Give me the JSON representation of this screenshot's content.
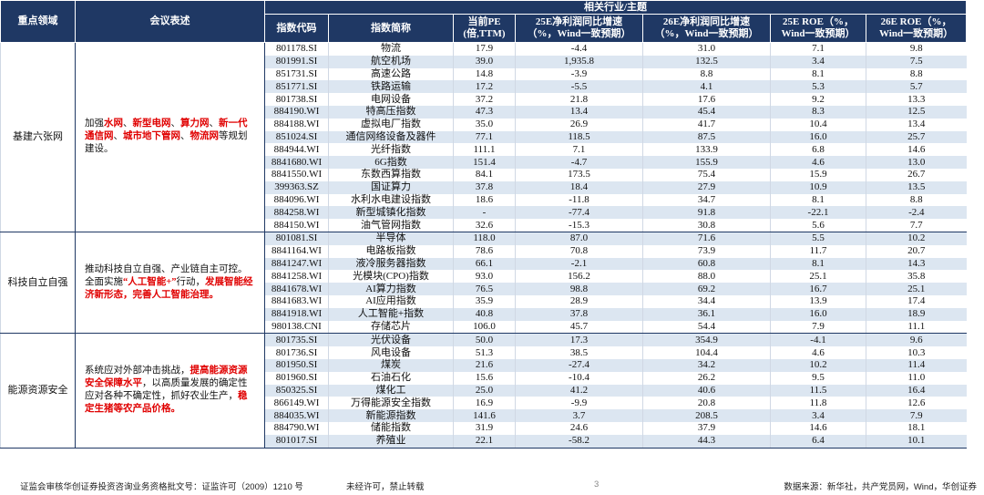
{
  "header": {
    "area": "重点领域",
    "statement": "会议表述",
    "group": "相关行业/主题",
    "columns": [
      [
        "指数代码"
      ],
      [
        "指数简称"
      ],
      [
        "当前PE",
        "(倍,TTM)"
      ],
      [
        "25E净利润同比增速",
        "（%，Wind一致预期）"
      ],
      [
        "26E净利润同比增速",
        "（%，Wind一致预期）"
      ],
      [
        "25E ROE（%，",
        "Wind一致预期）"
      ],
      [
        "26E ROE（%，",
        "Wind一致预期）"
      ]
    ]
  },
  "sections": [
    {
      "area": "基建六张网",
      "statement": [
        {
          "text": "加强",
          "emphasis": false
        },
        {
          "text": "水网",
          "emphasis": true
        },
        {
          "text": "、",
          "emphasis": false
        },
        {
          "text": "新型电网",
          "emphasis": true
        },
        {
          "text": "、",
          "emphasis": false
        },
        {
          "text": "算力网",
          "emphasis": true
        },
        {
          "text": "、",
          "emphasis": false
        },
        {
          "text": "新一代通信网",
          "emphasis": true
        },
        {
          "text": "、",
          "emphasis": false
        },
        {
          "text": "城市地下管网",
          "emphasis": true
        },
        {
          "text": "、",
          "emphasis": false
        },
        {
          "text": "物流网",
          "emphasis": true
        },
        {
          "text": "等规划建设。",
          "emphasis": false
        }
      ],
      "rows": [
        [
          "801178.SI",
          "物流",
          "17.9",
          "-4.4",
          "31.0",
          "7.1",
          "9.8"
        ],
        [
          "801991.SI",
          "航空机场",
          "39.0",
          "1,935.8",
          "132.5",
          "3.4",
          "7.5"
        ],
        [
          "851731.SI",
          "高速公路",
          "14.8",
          "-3.9",
          "8.8",
          "8.1",
          "8.8"
        ],
        [
          "851771.SI",
          "铁路运输",
          "17.2",
          "-5.5",
          "4.1",
          "5.3",
          "5.7"
        ],
        [
          "801738.SI",
          "电网设备",
          "37.2",
          "21.8",
          "17.6",
          "9.2",
          "13.3"
        ],
        [
          "884190.WI",
          "特高压指数",
          "47.3",
          "13.4",
          "45.4",
          "8.3",
          "12.5"
        ],
        [
          "884188.WI",
          "虚拟电厂指数",
          "35.0",
          "26.9",
          "41.7",
          "10.4",
          "13.4"
        ],
        [
          "851024.SI",
          "通信网络设备及器件",
          "77.1",
          "118.5",
          "87.5",
          "16.0",
          "25.7"
        ],
        [
          "884944.WI",
          "光纤指数",
          "111.1",
          "7.1",
          "133.9",
          "6.8",
          "14.6"
        ],
        [
          "8841680.WI",
          "6G指数",
          "151.4",
          "-4.7",
          "155.9",
          "4.6",
          "13.0"
        ],
        [
          "8841550.WI",
          "东数西算指数",
          "84.1",
          "173.5",
          "75.4",
          "15.9",
          "26.7"
        ],
        [
          "399363.SZ",
          "国证算力",
          "37.8",
          "18.4",
          "27.9",
          "10.9",
          "13.5"
        ],
        [
          "884096.WI",
          "水利水电建设指数",
          "18.6",
          "-11.8",
          "34.7",
          "8.1",
          "8.8"
        ],
        [
          "884258.WI",
          "新型城镇化指数",
          "-",
          "-77.4",
          "91.8",
          "-22.1",
          "-2.4"
        ],
        [
          "884150.WI",
          "油气管网指数",
          "32.6",
          "-15.3",
          "30.8",
          "5.6",
          "7.7"
        ]
      ]
    },
    {
      "area": "科技自立自强",
      "statement": [
        {
          "text": "推动科技自立自强、产业链自主可控。全面实施",
          "emphasis": false
        },
        {
          "text": "“人工智能+”",
          "emphasis": true
        },
        {
          "text": "行动，",
          "emphasis": false
        },
        {
          "text": "发展智能经济新形态，完善人工智能治理。",
          "emphasis": true
        }
      ],
      "rows": [
        [
          "801081.SI",
          "半导体",
          "118.0",
          "87.0",
          "71.6",
          "5.5",
          "10.2"
        ],
        [
          "8841164.WI",
          "电路板指数",
          "78.6",
          "70.8",
          "73.9",
          "11.7",
          "20.7"
        ],
        [
          "8841247.WI",
          "液冷服务器指数",
          "66.1",
          "-2.1",
          "60.8",
          "8.1",
          "14.3"
        ],
        [
          "8841258.WI",
          "光模块(CPO)指数",
          "93.0",
          "156.2",
          "88.0",
          "25.1",
          "35.8"
        ],
        [
          "8841678.WI",
          "AI算力指数",
          "76.5",
          "98.8",
          "69.2",
          "16.7",
          "25.1"
        ],
        [
          "8841683.WI",
          "AI应用指数",
          "35.9",
          "28.9",
          "34.4",
          "13.9",
          "17.4"
        ],
        [
          "8841918.WI",
          "人工智能+指数",
          "40.8",
          "37.8",
          "36.1",
          "16.0",
          "18.9"
        ],
        [
          "980138.CNI",
          "存储芯片",
          "106.0",
          "45.7",
          "54.4",
          "7.9",
          "11.1"
        ]
      ]
    },
    {
      "area": "能源资源安全",
      "statement": [
        {
          "text": "系统应对外部冲击挑战，",
          "emphasis": false
        },
        {
          "text": "提高能源资源安全保障水平",
          "emphasis": true
        },
        {
          "text": "，以高质量发展的确定性应对各种不确定性，抓好农业生产，",
          "emphasis": false
        },
        {
          "text": "稳定生猪等农产品价格。",
          "emphasis": true
        }
      ],
      "rows": [
        [
          "801735.SI",
          "光伏设备",
          "50.0",
          "17.3",
          "354.9",
          "-4.1",
          "9.6"
        ],
        [
          "801736.SI",
          "风电设备",
          "51.3",
          "38.5",
          "104.4",
          "4.6",
          "10.3"
        ],
        [
          "801950.SI",
          "煤炭",
          "21.6",
          "-27.4",
          "34.2",
          "10.2",
          "11.4"
        ],
        [
          "801960.SI",
          "石油石化",
          "15.6",
          "-10.4",
          "26.2",
          "9.5",
          "11.0"
        ],
        [
          "850325.SI",
          "煤化工",
          "25.0",
          "41.2",
          "40.6",
          "11.5",
          "16.4"
        ],
        [
          "866149.WI",
          "万得能源安全指数",
          "16.9",
          "-9.9",
          "20.8",
          "11.8",
          "12.6"
        ],
        [
          "884035.WI",
          "新能源指数",
          "141.6",
          "3.7",
          "208.5",
          "3.4",
          "7.9"
        ],
        [
          "884790.WI",
          "储能指数",
          "31.9",
          "24.6",
          "37.9",
          "14.6",
          "18.1"
        ],
        [
          "801017.SI",
          "养殖业",
          "22.1",
          "-58.2",
          "44.3",
          "6.4",
          "10.1"
        ]
      ]
    }
  ],
  "footer": {
    "license": "证监会审核华创证券投资咨询业务资格批文号：证监许可（2009）1210 号",
    "notice": "未经许可，禁止转载",
    "page": "3",
    "source": "数据来源：新华社，共产党员网，Wind，华创证券"
  }
}
